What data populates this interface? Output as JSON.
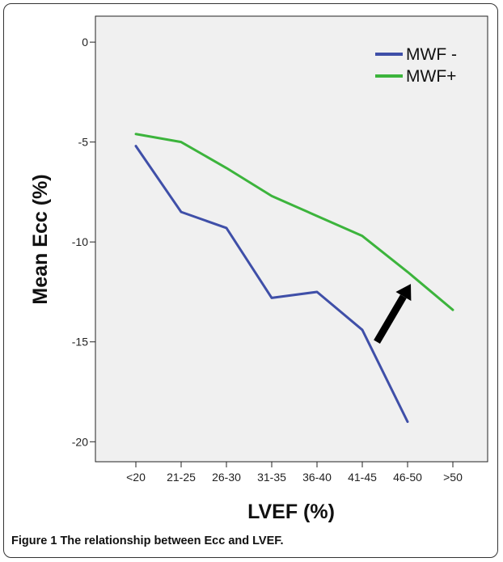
{
  "chart_data": {
    "type": "line",
    "categories": [
      "<20",
      "21-25",
      "26-30",
      "31-35",
      "36-40",
      "41-45",
      "46-50",
      ">50"
    ],
    "series": [
      {
        "name": "MWF -",
        "color": "#3f4fa8",
        "values": [
          -5.2,
          -8.5,
          -9.3,
          -12.8,
          -12.5,
          -14.4,
          -19.0,
          null
        ]
      },
      {
        "name": "MWF+",
        "color": "#3cb43c",
        "values": [
          -4.6,
          -5.0,
          -6.3,
          -7.7,
          -8.7,
          -9.7,
          -11.5,
          -13.4
        ]
      }
    ],
    "xlabel": "LVEF (%)",
    "ylabel": "Mean Ecc (%)",
    "ylim": [
      -21,
      1.3
    ],
    "yticks": [
      0,
      -5,
      -10,
      -15,
      -20
    ],
    "grid": false,
    "legend_position": "top-right",
    "plot_background": "#f0f0f0",
    "annotations": [
      {
        "type": "arrow",
        "icon": "arrow-icon",
        "from": {
          "x": "41-45",
          "y": -15.0
        },
        "to": {
          "x": "46-50",
          "y": -12.1
        }
      }
    ]
  },
  "caption": {
    "label": "Figure 1",
    "text": "The relationship between Ecc and LVEF."
  }
}
